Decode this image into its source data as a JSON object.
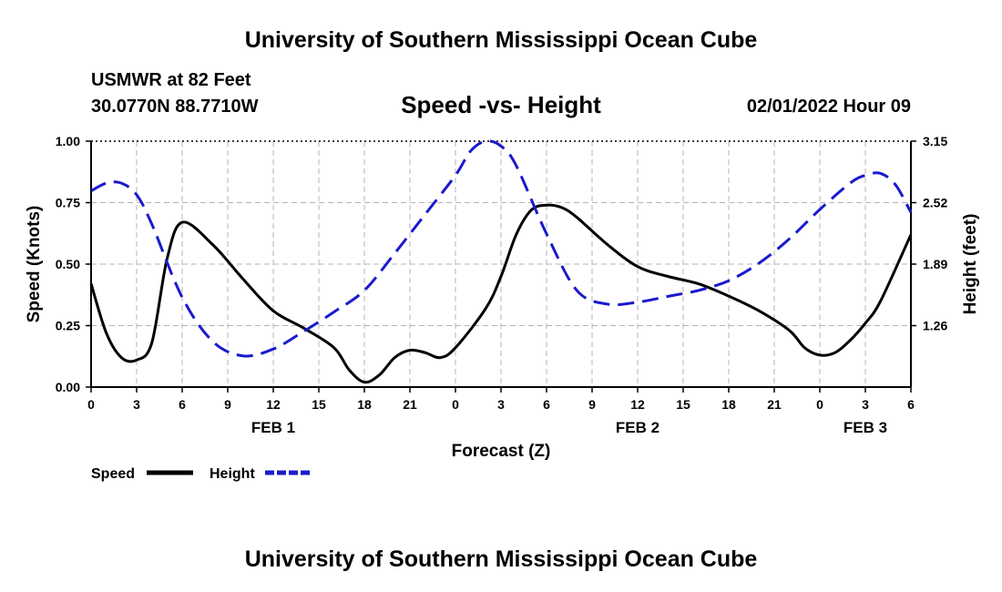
{
  "header": {
    "title": "University of Southern Mississippi Ocean Cube",
    "station": "USMWR at 82 Feet",
    "coords": "30.0770N  88.7710W",
    "subtitle": "Speed -vs- Height",
    "datestamp": "02/01/2022 Hour 09"
  },
  "footer": {
    "title": "University of Southern Mississippi Ocean Cube"
  },
  "colors": {
    "speed": "#000000",
    "height": "#1a1acd",
    "grid": "#b4b4b4"
  },
  "chart_data": {
    "type": "line",
    "title": "Speed -vs- Height",
    "xlabel": "Forecast (Z)",
    "ylabel": "Speed (Knots)",
    "y2label": "Height (feet)",
    "xlim": [
      0,
      54
    ],
    "ylim": [
      0,
      1.0
    ],
    "y2lim": [
      0.63,
      3.15
    ],
    "xticks": [
      0,
      3,
      6,
      9,
      12,
      15,
      18,
      21,
      24,
      27,
      30,
      33,
      36,
      39,
      42,
      45,
      48,
      51,
      54
    ],
    "xtick_labels": [
      "0",
      "3",
      "6",
      "9",
      "12",
      "15",
      "18",
      "21",
      "0",
      "3",
      "6",
      "9",
      "12",
      "15",
      "18",
      "21",
      "0",
      "3",
      "6"
    ],
    "yticks": [
      0,
      0.25,
      0.5,
      0.75,
      1.0
    ],
    "ytick_labels": [
      "0.00",
      "0.25",
      "0.50",
      "0.75",
      "1.00"
    ],
    "y2ticks": [
      1.26,
      1.89,
      2.52,
      3.15
    ],
    "y2tick_labels": [
      "1.26",
      "1.89",
      "2.52",
      "3.15"
    ],
    "day_labels": [
      {
        "x": 12,
        "label": "FEB 1"
      },
      {
        "x": 36,
        "label": "FEB 2"
      },
      {
        "x": 51,
        "label": "FEB 3"
      }
    ],
    "grid": true,
    "legend_position": "bottom-left",
    "series": [
      {
        "name": "Speed",
        "axis": "left",
        "style": "solid",
        "x": [
          0,
          1,
          2,
          3,
          4,
          5,
          6,
          8,
          10,
          12,
          14,
          16,
          17,
          18,
          19,
          20,
          21,
          22,
          23,
          24,
          26,
          27,
          28,
          29,
          30,
          31,
          32,
          34,
          36,
          38,
          40,
          42,
          44,
          46,
          47,
          48,
          49,
          50,
          51,
          52,
          54
        ],
        "values": [
          0.42,
          0.22,
          0.12,
          0.11,
          0.18,
          0.52,
          0.67,
          0.58,
          0.44,
          0.31,
          0.24,
          0.16,
          0.07,
          0.02,
          0.05,
          0.12,
          0.15,
          0.14,
          0.12,
          0.16,
          0.32,
          0.45,
          0.62,
          0.72,
          0.74,
          0.73,
          0.69,
          0.58,
          0.49,
          0.45,
          0.42,
          0.37,
          0.31,
          0.23,
          0.16,
          0.13,
          0.14,
          0.19,
          0.26,
          0.35,
          0.62
        ]
      },
      {
        "name": "Height",
        "axis": "right",
        "style": "dashed",
        "x": [
          0,
          1,
          2,
          3,
          4,
          6,
          8,
          10,
          12,
          14,
          16,
          18,
          20,
          22,
          24,
          25,
          26,
          27,
          28,
          30,
          32,
          34,
          36,
          38,
          40,
          42,
          44,
          46,
          48,
          50,
          51,
          52,
          53,
          54
        ],
        "values": [
          2.64,
          2.72,
          2.72,
          2.6,
          2.3,
          1.55,
          1.1,
          0.95,
          1.02,
          1.2,
          1.4,
          1.62,
          2.0,
          2.4,
          2.8,
          3.05,
          3.15,
          3.1,
          2.9,
          2.2,
          1.62,
          1.48,
          1.5,
          1.56,
          1.62,
          1.72,
          1.9,
          2.15,
          2.45,
          2.72,
          2.8,
          2.82,
          2.7,
          2.42
        ]
      }
    ]
  }
}
